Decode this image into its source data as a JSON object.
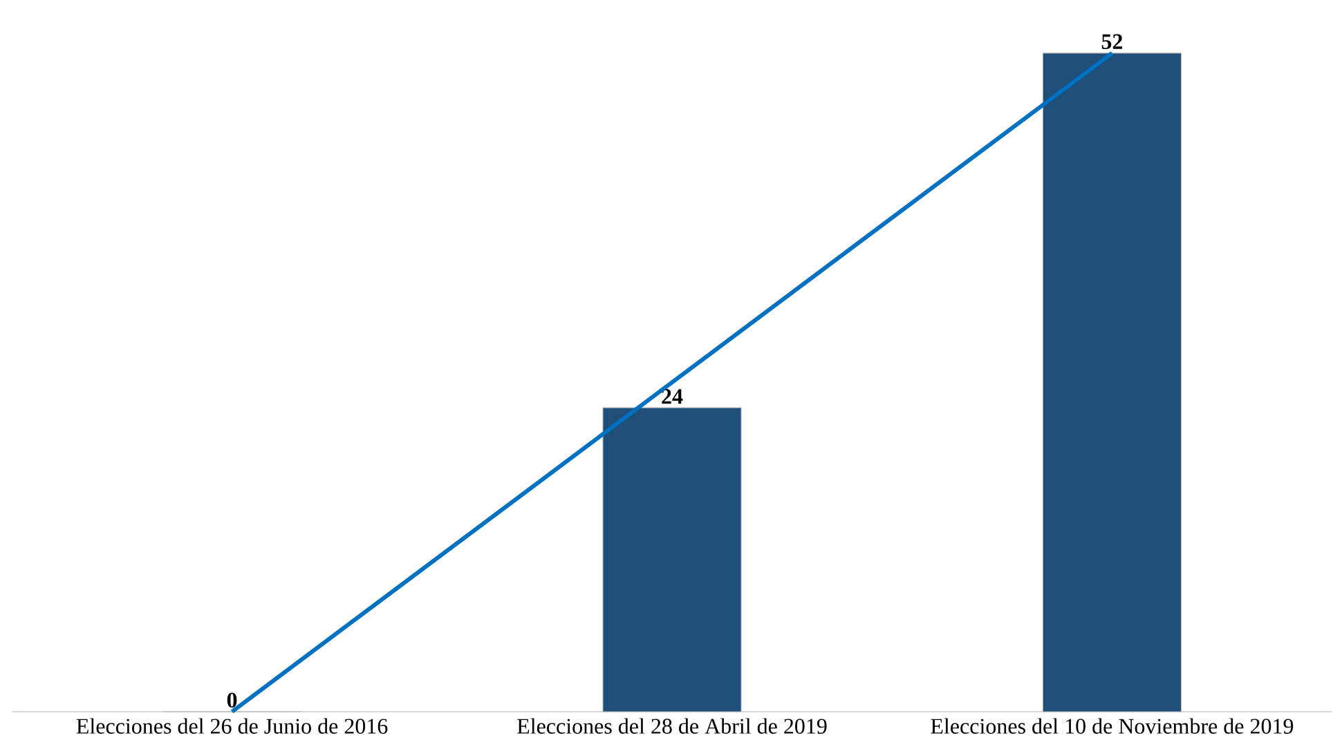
{
  "chart_data": {
    "type": "bar",
    "categories": [
      "Elecciones del 26 de Junio de 2016",
      "Elecciones del 28 de Abril de 2019",
      "Elecciones del 10 de Noviembre de 2019"
    ],
    "series": [
      {
        "color": "#1f4e79",
        "values": [
          0,
          24,
          52
        ],
        "value_labels": [
          "0",
          "24",
          "52"
        ]
      },
      {
        "type": "line",
        "color": "#0070c0",
        "values": [
          0,
          26,
          52
        ]
      }
    ]
  }
}
